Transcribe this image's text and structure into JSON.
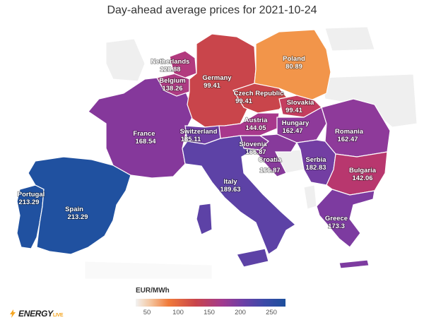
{
  "title": "Day-ahead average prices for 2021-10-24",
  "legend": {
    "title": "EUR/MWh",
    "ticks": [
      "50",
      "100",
      "150",
      "200",
      "250"
    ],
    "min": 25,
    "max": 262
  },
  "logo": {
    "text": "ENERGY",
    "suffix": "LIVE"
  },
  "countries": [
    {
      "id": "netherlands",
      "name": "Netherlands",
      "value_text": "128.88",
      "value": 128.88,
      "color": "#b23a7e"
    },
    {
      "id": "belgium",
      "name": "Belgium",
      "value_text": "138.26",
      "value": 138.26,
      "color": "#ad3b83"
    },
    {
      "id": "germany",
      "name": "Germany",
      "value_text": "99.41",
      "value": 99.41,
      "color": "#c9454b"
    },
    {
      "id": "poland",
      "name": "Poland",
      "value_text": "80.89",
      "value": 80.89,
      "color": "#f2954a"
    },
    {
      "id": "czech",
      "name": "Czech Republic",
      "value_text": "99.41",
      "value": 99.41,
      "color": "#c9454b"
    },
    {
      "id": "slovakia",
      "name": "Slovakia",
      "value_text": "99.41",
      "value": 99.41,
      "color": "#c43d5f"
    },
    {
      "id": "austria",
      "name": "Austria",
      "value_text": "144.05",
      "value": 144.05,
      "color": "#a8388c"
    },
    {
      "id": "hungary",
      "name": "Hungary",
      "value_text": "162.47",
      "value": 162.47,
      "color": "#8e3a9a"
    },
    {
      "id": "romania",
      "name": "Romania",
      "value_text": "162.47",
      "value": 162.47,
      "color": "#8e3a9a"
    },
    {
      "id": "france",
      "name": "France",
      "value_text": "168.54",
      "value": 168.54,
      "color": "#85389b"
    },
    {
      "id": "switzerland",
      "name": "Switzerland",
      "value_text": "185.11",
      "value": 185.11,
      "color": "#6f3ea3"
    },
    {
      "id": "slovenia",
      "name": "Slovenia",
      "value_text": "166.87",
      "value": 166.87,
      "color": "#873a9b"
    },
    {
      "id": "croatia",
      "name": "Croatia",
      "value_text": "166.87",
      "value": 166.87,
      "color": "#873a9b"
    },
    {
      "id": "serbia",
      "name": "Serbia",
      "value_text": "182.83",
      "value": 182.83,
      "color": "#733ea3"
    },
    {
      "id": "bulgaria",
      "name": "Bulgaria",
      "value_text": "142.06",
      "value": 142.06,
      "color": "#b8376e"
    },
    {
      "id": "italy",
      "name": "Italy",
      "value_text": "189.63",
      "value": 189.63,
      "color": "#5d42a6"
    },
    {
      "id": "greece",
      "name": "Greece",
      "value_text": "173.3",
      "value": 173.3,
      "color": "#7d3ba0"
    },
    {
      "id": "portugal",
      "name": "Portugal",
      "value_text": "213.29",
      "value": 213.29,
      "color": "#2051a0"
    },
    {
      "id": "spain",
      "name": "Spain",
      "value_text": "213.29",
      "value": 213.29,
      "color": "#2051a0"
    }
  ],
  "colors": {
    "no_data": "#f0f0f0",
    "border": "#ffffff"
  }
}
